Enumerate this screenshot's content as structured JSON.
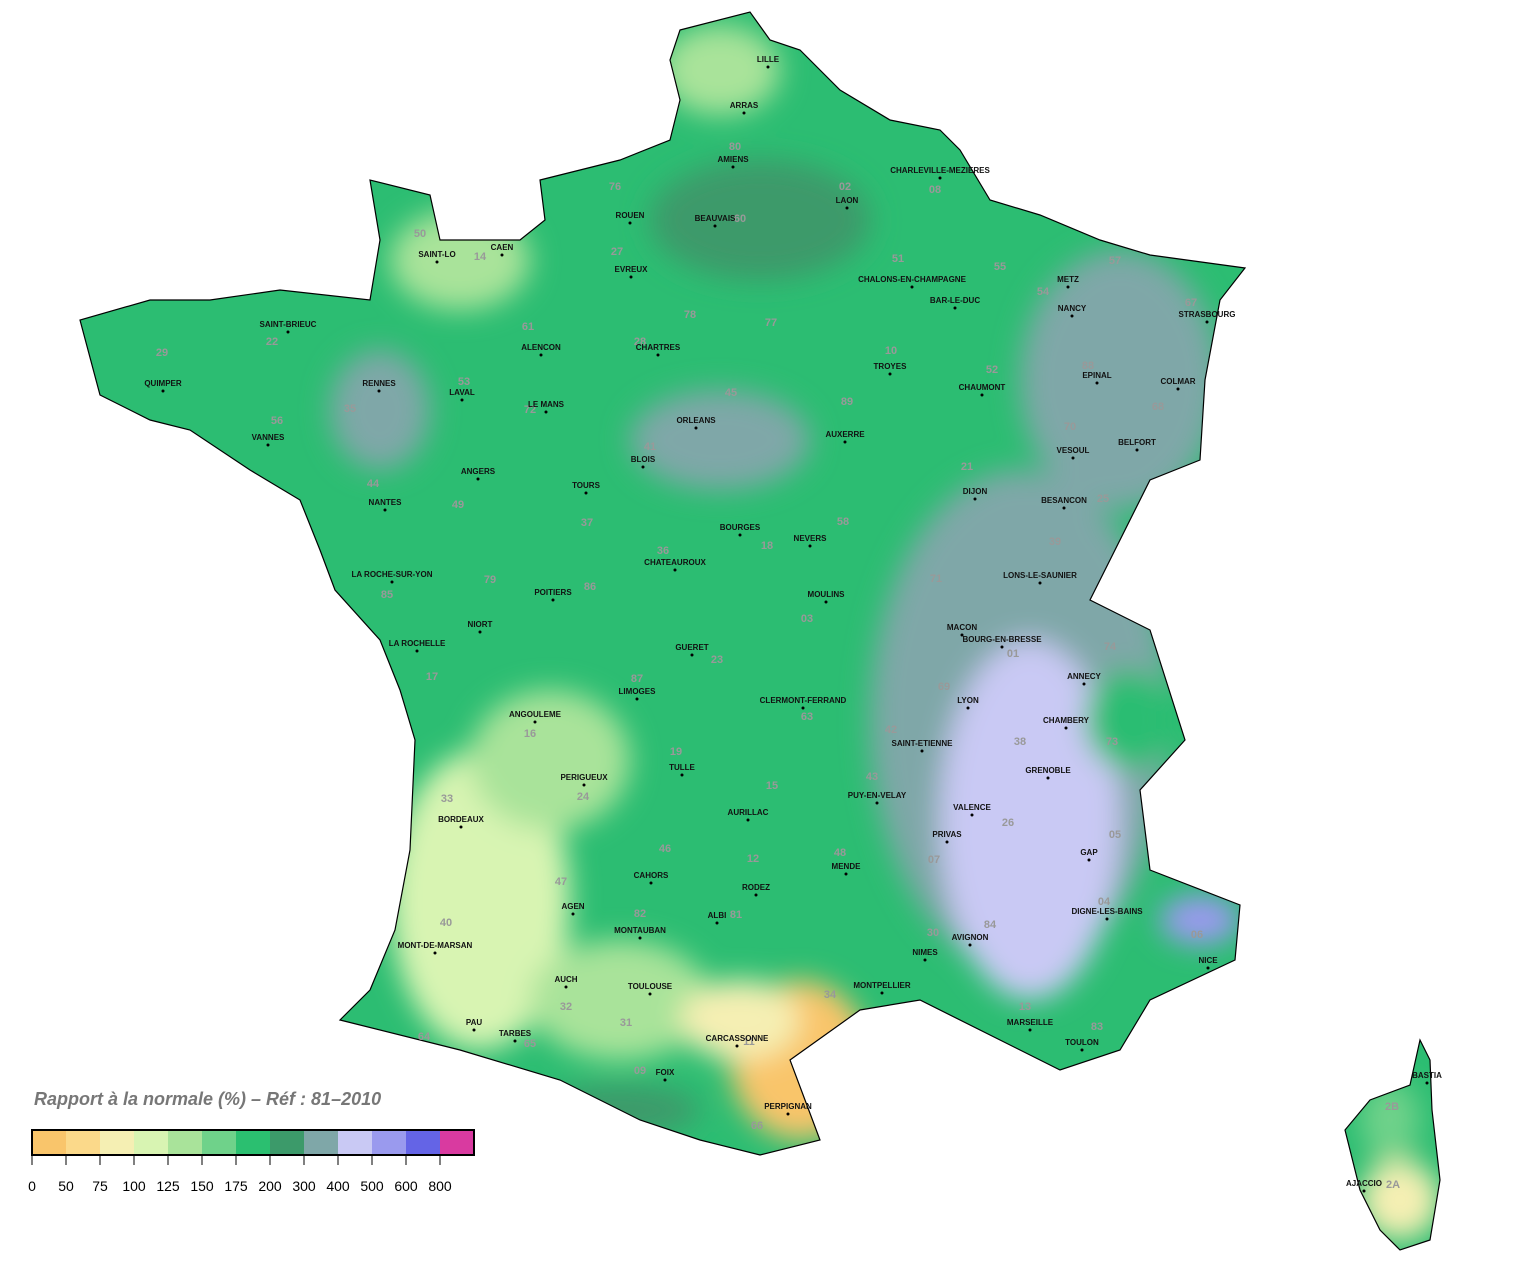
{
  "legend": {
    "title": "Rapport à la normale (%) – Réf : 81–2010",
    "ticks": [
      0,
      50,
      75,
      100,
      125,
      150,
      175,
      200,
      300,
      400,
      500,
      600,
      800
    ],
    "colors": [
      "#f9c56b",
      "#fbd98a",
      "#f5efb3",
      "#d8f4b2",
      "#a9e39a",
      "#6fd28a",
      "#2bbf70",
      "#3c9a6a",
      "#7fa7a8",
      "#c9c9f4",
      "#9a9aee",
      "#6464e6",
      "#d93aa0"
    ]
  },
  "cities": [
    "LILLE",
    "ARRAS",
    "AMIENS",
    "CHARLEVILLE-MEZIERES",
    "LAON",
    "ROUEN",
    "BEAUVAIS",
    "CAEN",
    "SAINT-LO",
    "EVREUX",
    "METZ",
    "CHALONS-EN-CHAMPAGNE",
    "BAR-LE-DUC",
    "STRASBOURG",
    "NANCY",
    "SAINT-BRIEUC",
    "ALENCON",
    "CHARTRES",
    "TROYES",
    "EPINAL",
    "COLMAR",
    "QUIMPER",
    "RENNES",
    "CHAUMONT",
    "LAVAL",
    "LE MANS",
    "ORLEANS",
    "VANNES",
    "AUXERRE",
    "BELFORT",
    "VESOUL",
    "BLOIS",
    "ANGERS",
    "DIJON",
    "TOURS",
    "BESANCON",
    "NANTES",
    "BOURGES",
    "NEVERS",
    "CHATEAUROUX",
    "LA ROCHE-SUR-YON",
    "LONS-LE-SAUNIER",
    "POITIERS",
    "MOULINS",
    "NIORT",
    "MACON",
    "BOURG-EN-BRESSE",
    "GUERET",
    "LA ROCHELLE",
    "ANNECY",
    "LIMOGES",
    "CLERMONT-FERRAND",
    "LYON",
    "ANGOULEME",
    "CHAMBERY",
    "SAINT-ETIENNE",
    "TULLE",
    "GRENOBLE",
    "PERIGUEUX",
    "PUY-EN-VELAY",
    "AURILLAC",
    "VALENCE",
    "BORDEAUX",
    "PRIVAS",
    "GAP",
    "MENDE",
    "CAHORS",
    "RODEZ",
    "DIGNE-LES-BAINS",
    "AGEN",
    "MONTAUBAN",
    "ALBI",
    "AVIGNON",
    "MONT-DE-MARSAN",
    "NIMES",
    "NICE",
    "AUCH",
    "TOULOUSE",
    "MONTPELLIER",
    "PAU",
    "MARSEILLE",
    "TARBES",
    "TOULON",
    "CARCASSONNE",
    "FOIX",
    "PERPIGNAN",
    "BASTIA",
    "AJACCIO"
  ],
  "departments": [
    "80",
    "76",
    "60",
    "02",
    "08",
    "50",
    "14",
    "27",
    "78",
    "77",
    "51",
    "55",
    "54",
    "57",
    "67",
    "22",
    "61",
    "28",
    "29",
    "35",
    "56",
    "53",
    "72",
    "45",
    "10",
    "52",
    "88",
    "68",
    "89",
    "44",
    "49",
    "37",
    "41",
    "21",
    "70",
    "25",
    "58",
    "18",
    "36",
    "85",
    "79",
    "86",
    "71",
    "39",
    "03",
    "23",
    "87",
    "17",
    "16",
    "74",
    "01",
    "69",
    "63",
    "73",
    "42",
    "38",
    "19",
    "24",
    "43",
    "15",
    "33",
    "07",
    "26",
    "05",
    "48",
    "46",
    "12",
    "04",
    "47",
    "82",
    "81",
    "30",
    "84",
    "06",
    "40",
    "32",
    "31",
    "34",
    "13",
    "83",
    "11",
    "65",
    "64",
    "09",
    "66",
    "2B",
    "2A"
  ]
}
